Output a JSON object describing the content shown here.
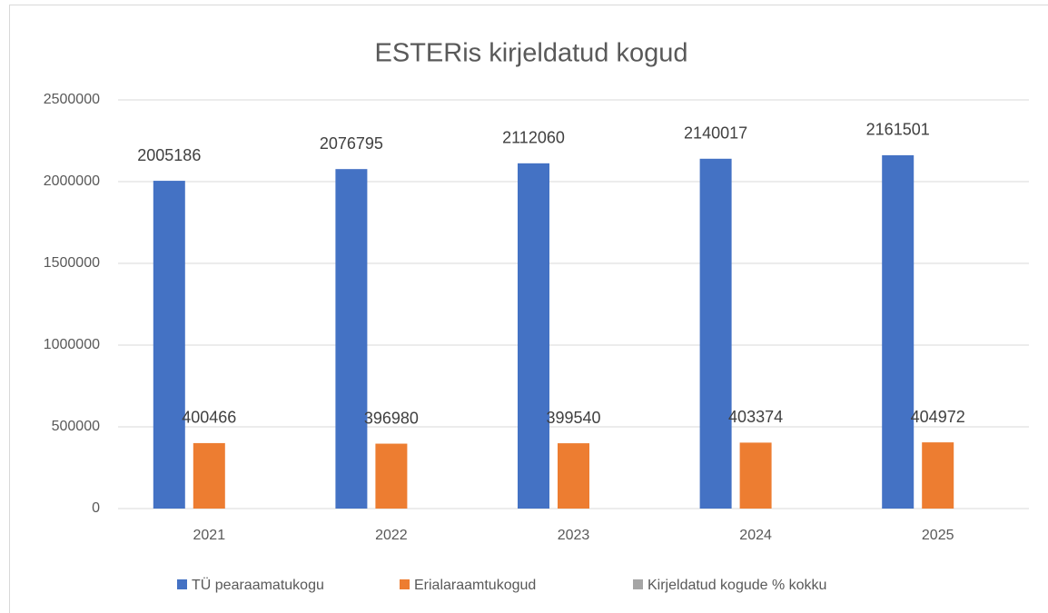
{
  "chart_data": {
    "type": "bar",
    "title": "ESTERis kirjeldatud kogud",
    "categories": [
      "2021",
      "2022",
      "2023",
      "2024",
      "2025"
    ],
    "series": [
      {
        "name": "TÜ pearaamatukogu",
        "color": "#4472c4",
        "values": [
          2005186,
          2076795,
          2112060,
          2140017,
          2161501
        ]
      },
      {
        "name": "Erialaraamtukogud",
        "color": "#ed7d31",
        "values": [
          400466,
          396980,
          399540,
          403374,
          404972
        ]
      },
      {
        "name": "Kirjeldatud kogude % kokku",
        "color": "#a5a5a5",
        "values": [
          0,
          0,
          0,
          0,
          0
        ]
      }
    ],
    "data_labels_series": [
      0,
      1
    ],
    "ylim": [
      0,
      2500000
    ],
    "yticks": [
      0,
      500000,
      1000000,
      1500000,
      2000000,
      2500000
    ],
    "grid": true,
    "legend": "bottom"
  }
}
